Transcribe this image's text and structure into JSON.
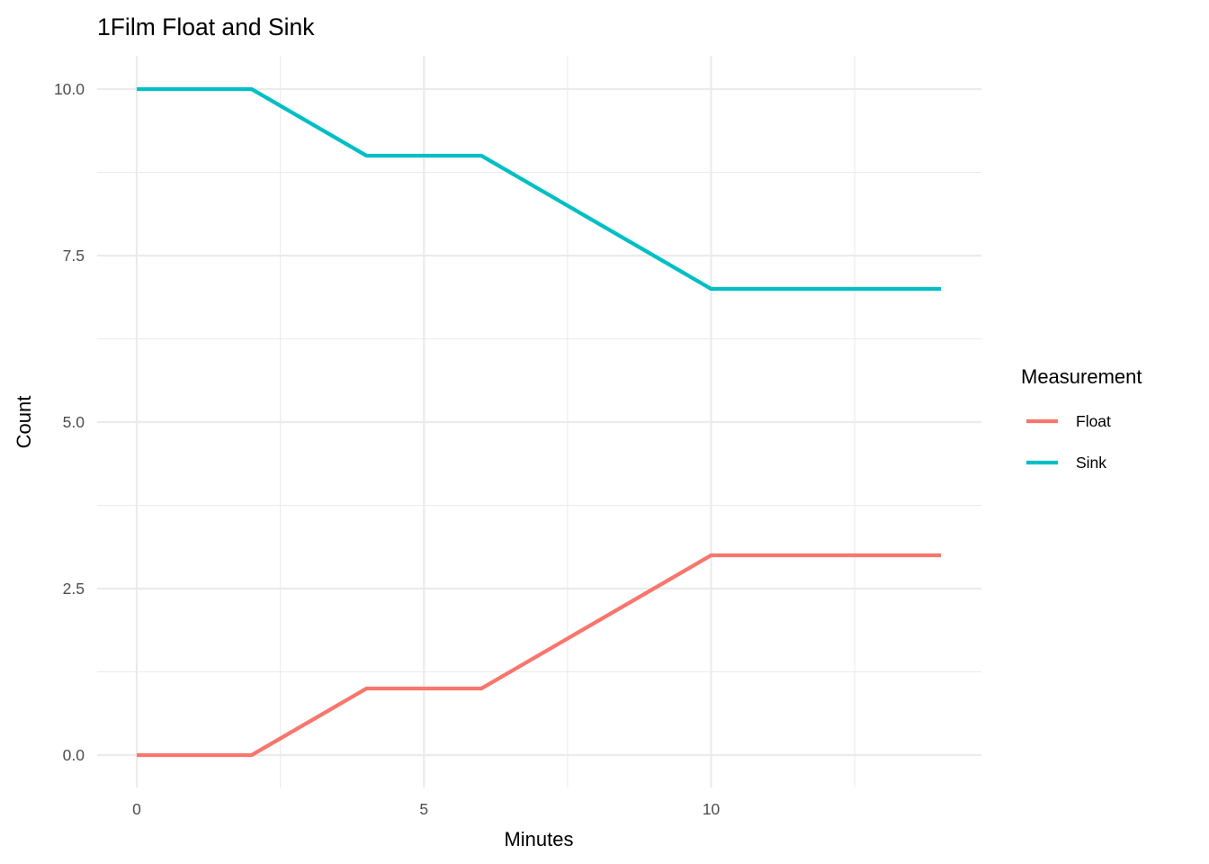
{
  "chart_data": {
    "type": "line",
    "title": "1Film Float and Sink",
    "xlabel": "Minutes",
    "ylabel": "Count",
    "xlim": [
      0,
      14
    ],
    "ylim": [
      0,
      10
    ],
    "x_ticks": [
      0,
      5,
      10
    ],
    "x_tick_labels": [
      "0",
      "5",
      "10"
    ],
    "x_minor_ticks": [
      2.5,
      7.5,
      12.5
    ],
    "y_ticks": [
      0,
      2.5,
      5,
      7.5,
      10
    ],
    "y_tick_labels": [
      "0.0",
      "2.5",
      "5.0",
      "7.5",
      "10.0"
    ],
    "y_minor_ticks": [
      1.25,
      3.75,
      6.25,
      8.75
    ],
    "grid": true,
    "legend": {
      "title": "Measurement",
      "placement": "right"
    },
    "series": [
      {
        "name": "Float",
        "color": "#F8766D",
        "x": [
          0,
          2,
          4,
          6,
          8,
          10,
          12,
          14
        ],
        "y": [
          0,
          0,
          1,
          1,
          2,
          3,
          3,
          3
        ]
      },
      {
        "name": "Sink",
        "color": "#00BFC4",
        "x": [
          0,
          2,
          4,
          6,
          8,
          10,
          12,
          14
        ],
        "y": [
          10,
          10,
          9,
          9,
          8,
          7,
          7,
          7
        ]
      }
    ]
  }
}
